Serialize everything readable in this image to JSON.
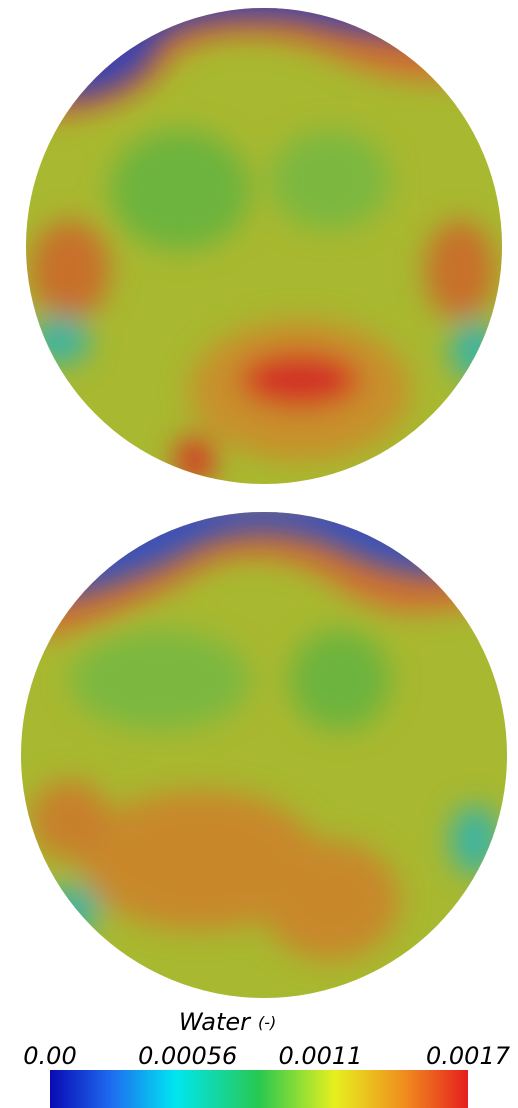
{
  "colorbar": {
    "title": "Water",
    "unit": "(-)",
    "range": [
      0,
      0.0017
    ],
    "ticks": [
      {
        "value": 0,
        "label": "0.00"
      },
      {
        "value": 0.00056,
        "label": "0.00056"
      },
      {
        "value": 0.0011,
        "label": "0.0011"
      },
      {
        "value": 0.0017,
        "label": "0.0017"
      }
    ]
  }
}
